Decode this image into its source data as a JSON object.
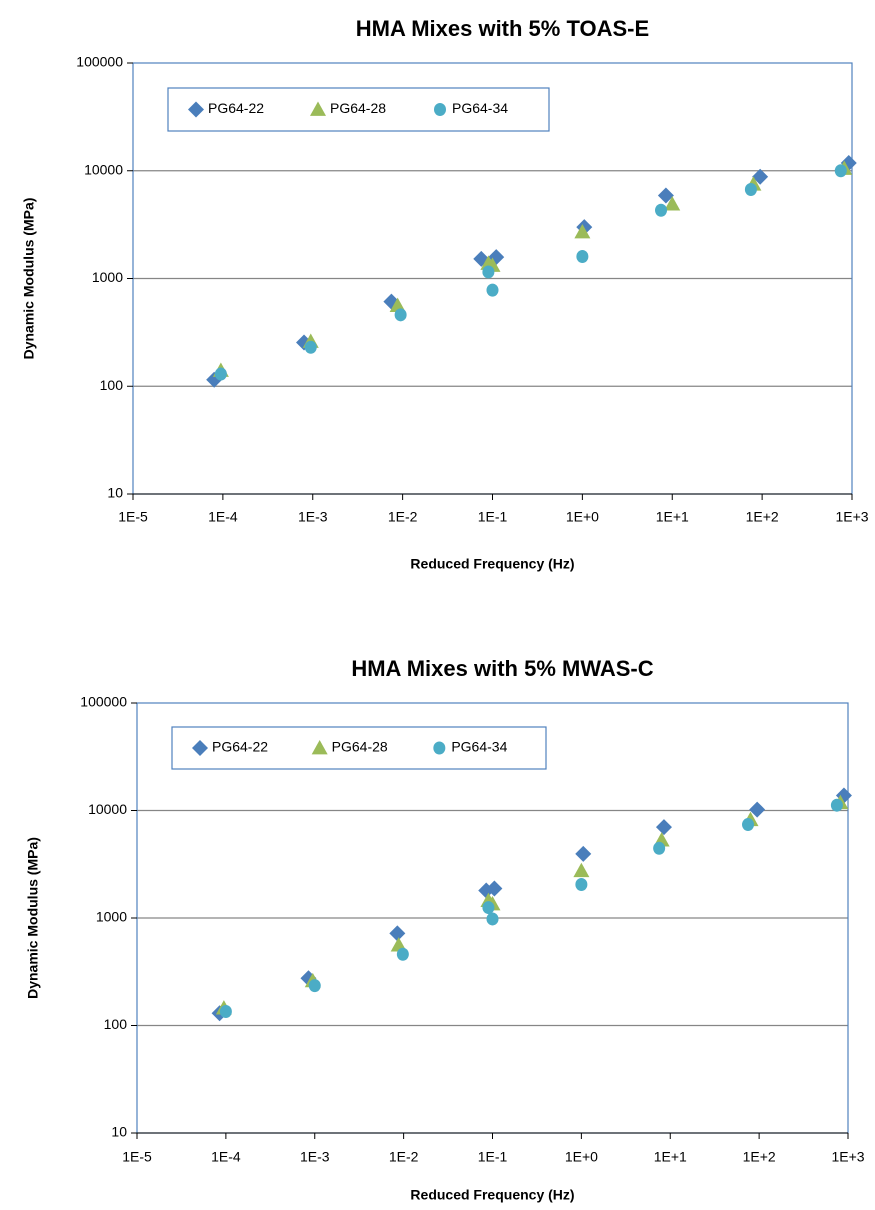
{
  "colors": {
    "PG64-22": "#4a7ebb",
    "PG64-28": "#9bbb59",
    "PG64-34": "#4bacc6"
  },
  "chart_data": [
    {
      "type": "scatter",
      "title": "HMA Mixes with 5% TOAS-E",
      "xlabel": "Reduced Frequency (Hz)",
      "ylabel": "Dynamic Modulus (MPa)",
      "x_scale": "log",
      "y_scale": "log",
      "xlim": [
        1e-05,
        1000
      ],
      "ylim": [
        10,
        100000
      ],
      "x_ticks": [
        "1E-5",
        "1E-4",
        "1E-3",
        "1E-2",
        "1E-1",
        "1E+0",
        "1E+1",
        "1E+2",
        "1E+3"
      ],
      "y_ticks": [
        "10",
        "100",
        "1000",
        "10000",
        "100000"
      ],
      "grid": "horizontal",
      "legend": "top-left",
      "series": [
        {
          "name": "PG64-22",
          "marker": "diamond",
          "x": [
            8e-05,
            0.0008,
            0.0075,
            0.075,
            0.11,
            1.05,
            8.5,
            95,
            920
          ],
          "y": [
            115,
            255,
            610,
            1520,
            1580,
            3000,
            5900,
            8800,
            11800
          ]
        },
        {
          "name": "PG64-28",
          "marker": "triangle",
          "x": [
            9.5e-05,
            0.00095,
            0.0088,
            0.09,
            0.1,
            1.0,
            10,
            80,
            820
          ],
          "y": [
            140,
            260,
            560,
            1380,
            1320,
            2700,
            4900,
            7500,
            10500
          ]
        },
        {
          "name": "PG64-34",
          "marker": "circle",
          "x": [
            9.5e-05,
            0.00095,
            0.0095,
            0.09,
            0.1,
            1.0,
            7.5,
            75,
            750
          ],
          "y": [
            130,
            230,
            460,
            1150,
            780,
            1600,
            4300,
            6700,
            10000
          ]
        }
      ]
    },
    {
      "type": "scatter",
      "title": "HMA Mixes with 5% MWAS-C",
      "xlabel": "Reduced Frequency (Hz)",
      "ylabel": "Dynamic Modulus (MPa)",
      "x_scale": "log",
      "y_scale": "log",
      "xlim": [
        1e-05,
        1000
      ],
      "ylim": [
        10,
        100000
      ],
      "x_ticks": [
        "1E-5",
        "1E-4",
        "1E-3",
        "1E-2",
        "1E-1",
        "1E+0",
        "1E+1",
        "1E+2",
        "1E+3"
      ],
      "y_ticks": [
        "10",
        "100",
        "1000",
        "10000",
        "100000"
      ],
      "grid": "horizontal",
      "legend": "top-left",
      "series": [
        {
          "name": "PG64-22",
          "marker": "diamond",
          "x": [
            8.5e-05,
            0.00085,
            0.0085,
            0.085,
            0.105,
            1.05,
            8.5,
            95,
            900
          ],
          "y": [
            130,
            275,
            720,
            1800,
            1880,
            3950,
            7000,
            10200,
            13800
          ]
        },
        {
          "name": "PG64-28",
          "marker": "triangle",
          "x": [
            9.5e-05,
            0.00095,
            0.0088,
            0.09,
            0.1,
            1.0,
            8,
            80,
            820
          ],
          "y": [
            145,
            260,
            560,
            1450,
            1350,
            2750,
            5300,
            8200,
            11800
          ]
        },
        {
          "name": "PG64-34",
          "marker": "circle",
          "x": [
            0.0001,
            0.001,
            0.0098,
            0.09,
            0.1,
            1.0,
            7.5,
            75,
            750
          ],
          "y": [
            135,
            235,
            460,
            1250,
            980,
            2050,
            4450,
            7400,
            11200
          ]
        }
      ]
    }
  ]
}
